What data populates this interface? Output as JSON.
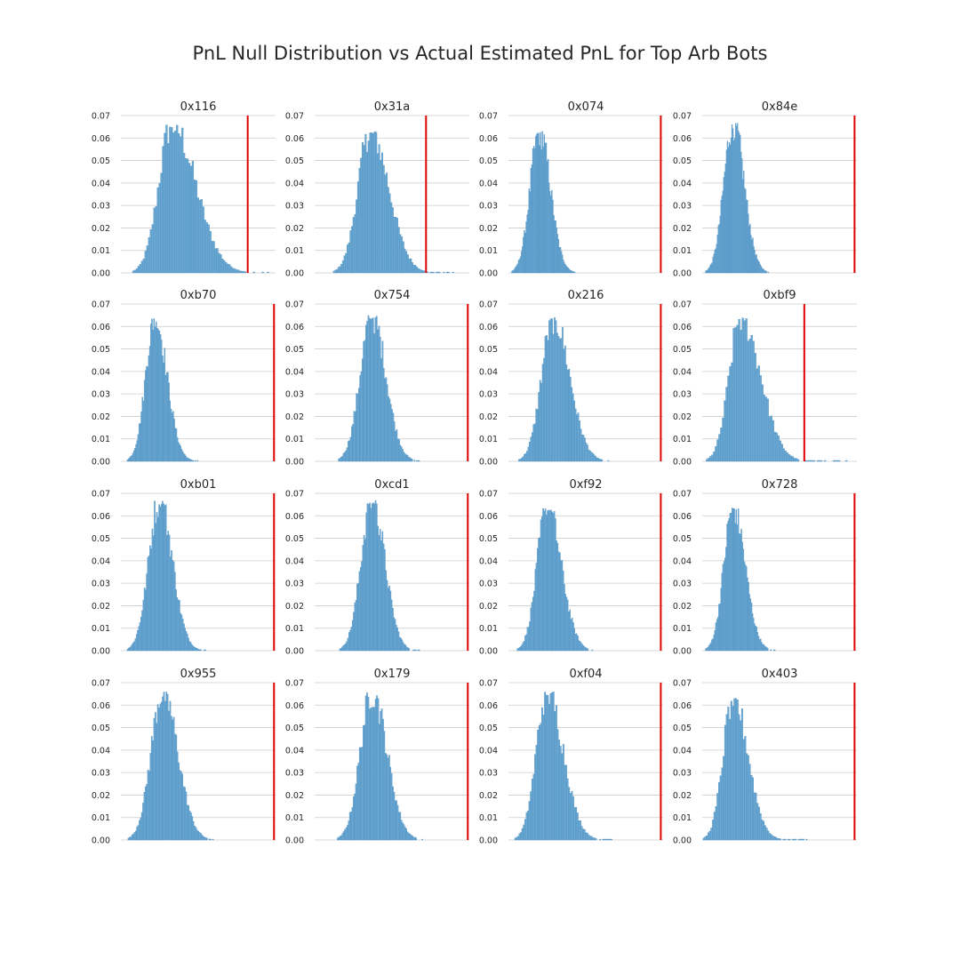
{
  "page": {
    "title": "PnL Null Distribution vs Actual Estimated PnL for Top Arb Bots"
  },
  "colors": {
    "bar_fill": "#6aa7d1",
    "bar_stroke": "#3f86bd",
    "actual_line": "#e00000",
    "grid": "#cccccc",
    "text": "#262626"
  },
  "chart_data": {
    "type": "bar",
    "subtype": "histogram-grid",
    "title": "PnL Null Distribution vs Actual Estimated PnL for Top Arb Bots",
    "layout": {
      "rows": 4,
      "cols": 4
    },
    "ylim": [
      0,
      0.07
    ],
    "yticks": [
      "0.00",
      "0.01",
      "0.02",
      "0.03",
      "0.04",
      "0.05",
      "0.06",
      "0.07"
    ],
    "ylabel": "",
    "xlabel": "",
    "grid": true,
    "x_tick_labels_shown": false,
    "panels": [
      {
        "name": "0x116",
        "xlim": [
          0,
          1
        ],
        "actual": 0.82,
        "mean": 0.33,
        "sd": 0.085,
        "peak": 0.066,
        "skew": 1.8,
        "bins": 80,
        "tail_to": 0.98
      },
      {
        "name": "0x31a",
        "xlim": [
          0,
          1
        ],
        "actual": 0.72,
        "mean": 0.36,
        "sd": 0.08,
        "peak": 0.063,
        "skew": 1.5,
        "bins": 80,
        "tail_to": 0.9
      },
      {
        "name": "0x074",
        "xlim": [
          0,
          1
        ],
        "actual": 0.985,
        "mean": 0.2,
        "sd": 0.06,
        "peak": 0.063,
        "skew": 1.2,
        "bins": 70,
        "tail_to": 0.45
      },
      {
        "name": "0x84e",
        "xlim": [
          0,
          1
        ],
        "actual": 0.985,
        "mean": 0.2,
        "sd": 0.06,
        "peak": 0.067,
        "skew": 1.2,
        "bins": 70,
        "tail_to": 0.43
      },
      {
        "name": "0xb70",
        "xlim": [
          0,
          1
        ],
        "actual": 0.99,
        "mean": 0.22,
        "sd": 0.06,
        "peak": 0.064,
        "skew": 1.3,
        "bins": 70,
        "tail_to": 0.52
      },
      {
        "name": "0x754",
        "xlim": [
          0,
          1
        ],
        "actual": 0.99,
        "mean": 0.37,
        "sd": 0.075,
        "peak": 0.065,
        "skew": 1.2,
        "bins": 70,
        "tail_to": 0.68
      },
      {
        "name": "0x216",
        "xlim": [
          0,
          1
        ],
        "actual": 0.985,
        "mean": 0.29,
        "sd": 0.075,
        "peak": 0.064,
        "skew": 1.4,
        "bins": 70,
        "tail_to": 0.66
      },
      {
        "name": "0xbf9",
        "xlim": [
          0,
          1
        ],
        "actual": 0.66,
        "mean": 0.25,
        "sd": 0.075,
        "peak": 0.064,
        "skew": 1.7,
        "bins": 80,
        "tail_to": 0.95
      },
      {
        "name": "0xb01",
        "xlim": [
          0,
          1
        ],
        "actual": 0.99,
        "mean": 0.25,
        "sd": 0.07,
        "peak": 0.067,
        "skew": 1.2,
        "bins": 70,
        "tail_to": 0.55
      },
      {
        "name": "0xcd1",
        "xlim": [
          0,
          1
        ],
        "actual": 0.99,
        "mean": 0.37,
        "sd": 0.07,
        "peak": 0.067,
        "skew": 1.2,
        "bins": 70,
        "tail_to": 0.68
      },
      {
        "name": "0xf92",
        "xlim": [
          0,
          1
        ],
        "actual": 0.985,
        "mean": 0.25,
        "sd": 0.065,
        "peak": 0.064,
        "skew": 1.4,
        "bins": 70,
        "tail_to": 0.56
      },
      {
        "name": "0x728",
        "xlim": [
          0,
          1
        ],
        "actual": 0.985,
        "mean": 0.2,
        "sd": 0.06,
        "peak": 0.064,
        "skew": 1.3,
        "bins": 70,
        "tail_to": 0.48
      },
      {
        "name": "0x955",
        "xlim": [
          0,
          1
        ],
        "actual": 0.99,
        "mean": 0.27,
        "sd": 0.075,
        "peak": 0.066,
        "skew": 1.3,
        "bins": 70,
        "tail_to": 0.6
      },
      {
        "name": "0x179",
        "xlim": [
          0,
          1
        ],
        "actual": 0.99,
        "mean": 0.37,
        "sd": 0.075,
        "peak": 0.066,
        "skew": 1.3,
        "bins": 70,
        "tail_to": 0.7
      },
      {
        "name": "0xf04",
        "xlim": [
          0,
          1
        ],
        "actual": 0.985,
        "mean": 0.25,
        "sd": 0.07,
        "peak": 0.066,
        "skew": 1.5,
        "bins": 70,
        "tail_to": 0.68
      },
      {
        "name": "0x403",
        "xlim": [
          0,
          1
        ],
        "actual": 0.985,
        "mean": 0.2,
        "sd": 0.065,
        "peak": 0.063,
        "skew": 1.5,
        "bins": 70,
        "tail_to": 0.7
      }
    ]
  }
}
